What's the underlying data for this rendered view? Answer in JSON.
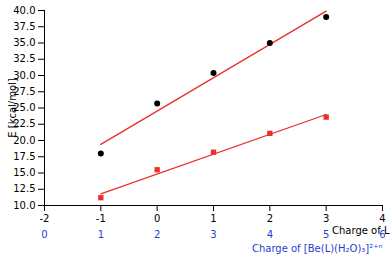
{
  "chart_data": {
    "type": "scatter",
    "xlabel": "Charge of L",
    "ylabel": "E [kcal/mol]",
    "xlim": [
      -2,
      4
    ],
    "xticks": [
      -2,
      -1,
      0,
      1,
      2,
      3,
      4
    ],
    "ylim": [
      10,
      40
    ],
    "yticks": [
      {
        "value": 10,
        "label": "10.0"
      },
      {
        "value": 12.5,
        "label": "12.5"
      },
      {
        "value": 15,
        "label": "15.0"
      },
      {
        "value": 17.5,
        "label": "17.5"
      },
      {
        "value": 20,
        "label": "20.0"
      },
      {
        "value": 22.5,
        "label": "22.5"
      },
      {
        "value": 25,
        "label": "25.0"
      },
      {
        "value": 27.5,
        "label": "27.5"
      },
      {
        "value": 30,
        "label": "30.0"
      },
      {
        "value": 32.5,
        "label": "32.5"
      },
      {
        "value": 35,
        "label": "35.0"
      },
      {
        "value": 37.5,
        "label": "37.5"
      },
      {
        "value": 40,
        "label": "40.0"
      }
    ],
    "secondary_x_axis": {
      "label": "Charge of [Be(L)(H₂O)₃]²⁺ⁿ",
      "color": "#1f3fd0",
      "ticks": [
        {
          "value": -2,
          "label": "0"
        },
        {
          "value": -1,
          "label": "1"
        },
        {
          "value": 0,
          "label": "2"
        },
        {
          "value": 1,
          "label": "3"
        },
        {
          "value": 2,
          "label": "4"
        },
        {
          "value": 3,
          "label": "5"
        },
        {
          "value": 4,
          "label": "6"
        }
      ]
    },
    "series": [
      {
        "type": "scatter",
        "color": "#000000",
        "marker": "circle",
        "x": [
          -1,
          0,
          1,
          2,
          3
        ],
        "values": [
          18.0,
          25.7,
          30.4,
          35.0,
          39.0
        ]
      },
      {
        "type": "scatter",
        "color": "#e8302a",
        "marker": "square",
        "x": [
          -1,
          0,
          1,
          2,
          3
        ],
        "values": [
          11.2,
          15.5,
          18.2,
          21.1,
          23.6
        ]
      },
      {
        "type": "line",
        "color": "#e8302a",
        "line_style": "solid",
        "x": [
          -1,
          3
        ],
        "values": [
          19.4,
          39.9
        ]
      },
      {
        "type": "line",
        "color": "#e8302a",
        "line_style": "solid",
        "x": [
          -1,
          3
        ],
        "values": [
          11.8,
          24.0
        ]
      }
    ]
  }
}
